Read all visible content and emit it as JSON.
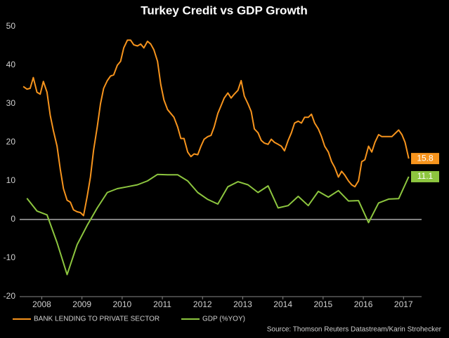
{
  "chart_data": {
    "type": "line",
    "title": "Turkey Credit vs GDP Growth",
    "source": "Source: Thomson Reuters Datastream/Karin Strohecker",
    "xlim": [
      2007.95,
      2017.95
    ],
    "ylim": [
      -20,
      50
    ],
    "yticks": [
      -20,
      -10,
      0,
      10,
      20,
      30,
      40,
      50
    ],
    "xticks": [
      {
        "value": 2008.5,
        "label": "2008"
      },
      {
        "value": 2009.5,
        "label": "2009"
      },
      {
        "value": 2010.5,
        "label": "2010"
      },
      {
        "value": 2011.5,
        "label": "2011"
      },
      {
        "value": 2012.5,
        "label": "2012"
      },
      {
        "value": 2013.5,
        "label": "2013"
      },
      {
        "value": 2014.5,
        "label": "2014"
      },
      {
        "value": 2015.5,
        "label": "2015"
      },
      {
        "value": 2016.5,
        "label": "2016"
      },
      {
        "value": 2017.5,
        "label": "2017"
      }
    ],
    "series": [
      {
        "name": "BANK LENDING TO PRIVATE SECTOR",
        "color": "#f7941d",
        "x": [
          2008.04,
          2008.13,
          2008.21,
          2008.29,
          2008.38,
          2008.46,
          2008.54,
          2008.63,
          2008.71,
          2008.79,
          2008.88,
          2008.96,
          2009.04,
          2009.13,
          2009.21,
          2009.29,
          2009.38,
          2009.46,
          2009.54,
          2009.63,
          2009.71,
          2009.79,
          2009.88,
          2009.96,
          2010.04,
          2010.13,
          2010.21,
          2010.29,
          2010.38,
          2010.46,
          2010.54,
          2010.63,
          2010.71,
          2010.79,
          2010.88,
          2010.96,
          2011.04,
          2011.13,
          2011.21,
          2011.29,
          2011.38,
          2011.46,
          2011.54,
          2011.63,
          2011.71,
          2011.79,
          2011.88,
          2011.96,
          2012.04,
          2012.13,
          2012.21,
          2012.29,
          2012.38,
          2012.46,
          2012.54,
          2012.63,
          2012.71,
          2012.79,
          2012.88,
          2012.96,
          2013.04,
          2013.13,
          2013.21,
          2013.29,
          2013.38,
          2013.46,
          2013.54,
          2013.63,
          2013.71,
          2013.79,
          2013.88,
          2013.96,
          2014.04,
          2014.13,
          2014.21,
          2014.29,
          2014.38,
          2014.46,
          2014.54,
          2014.63,
          2014.71,
          2014.79,
          2014.88,
          2014.96,
          2015.04,
          2015.13,
          2015.21,
          2015.29,
          2015.38,
          2015.46,
          2015.54,
          2015.63,
          2015.71,
          2015.79,
          2015.88,
          2015.96,
          2016.04,
          2016.13,
          2016.21,
          2016.29,
          2016.38,
          2016.46,
          2016.54,
          2016.63,
          2016.71,
          2016.79,
          2016.88,
          2016.96,
          2017.04,
          2017.13,
          2017.21,
          2017.29,
          2017.38,
          2017.46,
          2017.54,
          2017.63
        ],
        "values": [
          34.5,
          33.8,
          34,
          36.8,
          33,
          32.5,
          35.8,
          33,
          27,
          23,
          19,
          13,
          8,
          5,
          4.5,
          2.5,
          2,
          1.8,
          1,
          6,
          11,
          18,
          24,
          30,
          34,
          36,
          37.2,
          37.5,
          40,
          41,
          44.5,
          46.5,
          46.5,
          45.3,
          45,
          45.5,
          44.5,
          46.2,
          45.5,
          44,
          41,
          35,
          31,
          28.5,
          27.5,
          26.5,
          24,
          21,
          21,
          17.5,
          16.3,
          17,
          16.8,
          19,
          20.8,
          21.5,
          21.8,
          24,
          27.5,
          29.5,
          31.5,
          32.8,
          31.5,
          32.5,
          33.5,
          36,
          32,
          30,
          28,
          23.5,
          22.5,
          20.5,
          19.8,
          19.5,
          20.8,
          20,
          19.5,
          19,
          17.8,
          20.5,
          22.5,
          25,
          25.5,
          25,
          26.5,
          26.5,
          27.3,
          25,
          23.5,
          21.5,
          19,
          17.5,
          15,
          13.5,
          11,
          12.5,
          11.5,
          10,
          9,
          8.5,
          10,
          15,
          15.5,
          19,
          17.5,
          20,
          22,
          21.5,
          21.5,
          21.5,
          21.5,
          22.3,
          23.2,
          22,
          20,
          15.8
        ]
      },
      {
        "name": "GDP (%YOY)",
        "color": "#8dc63f",
        "x": [
          2008.13,
          2008.38,
          2008.63,
          2008.88,
          2009.13,
          2009.38,
          2009.63,
          2009.88,
          2010.13,
          2010.38,
          2010.63,
          2010.88,
          2011.13,
          2011.38,
          2011.63,
          2011.88,
          2012.13,
          2012.38,
          2012.63,
          2012.88,
          2013.13,
          2013.38,
          2013.63,
          2013.88,
          2014.13,
          2014.38,
          2014.63,
          2014.88,
          2015.13,
          2015.38,
          2015.63,
          2015.88,
          2016.13,
          2016.38,
          2016.63,
          2016.88,
          2017.13,
          2017.38,
          2017.63
        ],
        "values": [
          5.5,
          2.2,
          1.2,
          -6,
          -14.3,
          -6.5,
          -1.5,
          3,
          7,
          8,
          8.5,
          9,
          10,
          11.7,
          11.6,
          11.6,
          10,
          7,
          5.2,
          4,
          8.5,
          9.8,
          9,
          7,
          8.7,
          3,
          3.6,
          6,
          3.6,
          7.3,
          5.8,
          7.5,
          4.8,
          4.9,
          -0.8,
          4.3,
          5.3,
          5.4,
          11.1
        ]
      }
    ]
  }
}
